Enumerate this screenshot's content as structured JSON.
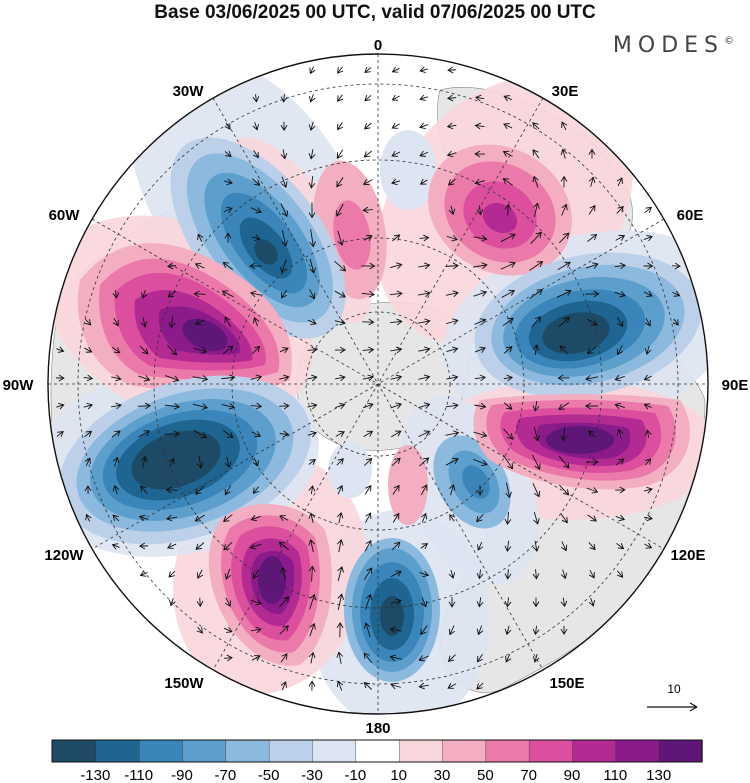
{
  "title": "Base 03/06/2025 00 UTC, valid 07/06/2025 00 UTC",
  "brand": "MODES",
  "brand_mark": "©",
  "longitude_labels": {
    "top": "0",
    "top_right": "30E",
    "right_upper": "60E",
    "right": "90E",
    "right_lower": "120E",
    "bottom_right": "150E",
    "bottom": "180",
    "bottom_left": "150W",
    "left_lower": "120W",
    "left": "90W",
    "left_upper": "60W",
    "top_left": "30W"
  },
  "vector_reference": "10",
  "colorbar": {
    "ticks": [
      "-130",
      "-110",
      "-90",
      "-70",
      "-50",
      "-30",
      "-10",
      "10",
      "30",
      "50",
      "70",
      "90",
      "110",
      "130"
    ],
    "colors": [
      "#1d4a66",
      "#1f6592",
      "#3a86ba",
      "#5c9fcc",
      "#8cb9de",
      "#bcd0e9",
      "#dde4f2",
      "#ffffff",
      "#f9d6dc",
      "#f3aec1",
      "#eb7aaa",
      "#dc4f9e",
      "#b22a92",
      "#8b1a8a",
      "#5e1778"
    ]
  },
  "colors": {
    "land": "#e6e6e6",
    "ocean": "#ffffff"
  },
  "map_features": {
    "projection": "north polar stereographic",
    "field": "filled anomaly contours with wind vectors",
    "centers": [
      {
        "sign": "negative",
        "label": "-130",
        "sector": "30W-40W"
      },
      {
        "sign": "positive",
        "label": "130",
        "sector": "60W-80W"
      },
      {
        "sign": "negative",
        "label": "-130",
        "sector": "100W-120W"
      },
      {
        "sign": "positive",
        "label": "130",
        "sector": "140W-160W"
      },
      {
        "sign": "negative",
        "label": "-90",
        "sector": "170E-180"
      },
      {
        "sign": "positive",
        "label": "110",
        "sector": "30E-40E"
      },
      {
        "sign": "negative",
        "label": "-130",
        "sector": "70E-80E"
      },
      {
        "sign": "positive",
        "label": "130",
        "sector": "100E-110E"
      }
    ]
  }
}
